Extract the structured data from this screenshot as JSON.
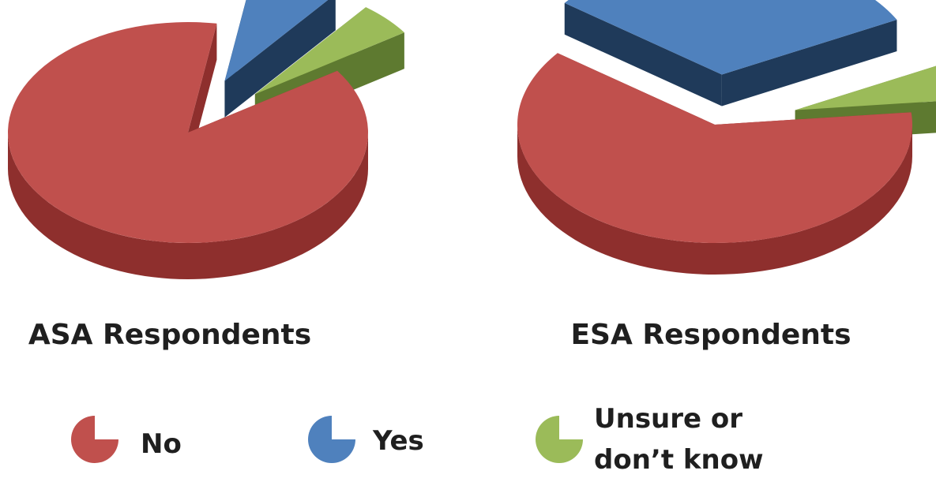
{
  "chart_data": [
    {
      "type": "pie",
      "title": "ASA Respondents",
      "categories": [
        "No",
        "Yes",
        "Unsure or don't know"
      ],
      "values": [
        87,
        8,
        5
      ],
      "exploded": [
        false,
        true,
        true
      ]
    },
    {
      "type": "pie",
      "title": "ESA Respondents",
      "categories": [
        "No",
        "Yes",
        "Unsure or don't know"
      ],
      "values": [
        62,
        32,
        6
      ],
      "exploded": [
        false,
        true,
        true
      ]
    }
  ],
  "legend": {
    "placement": "bottom",
    "items": [
      {
        "label": "No",
        "color": "#c0504d"
      },
      {
        "label": "Yes",
        "color": "#4f81bd"
      },
      {
        "label_lines": [
          "Unsure or",
          "don’t know"
        ],
        "color": "#9bbb59"
      }
    ]
  },
  "colors": {
    "No": {
      "top": "#c0504d",
      "side": "#8e2f2d"
    },
    "Yes": {
      "top": "#4f81bd",
      "side": "#1f3a5a"
    },
    "Unsure": {
      "top": "#9bbb59",
      "side": "#5e7a30"
    }
  }
}
